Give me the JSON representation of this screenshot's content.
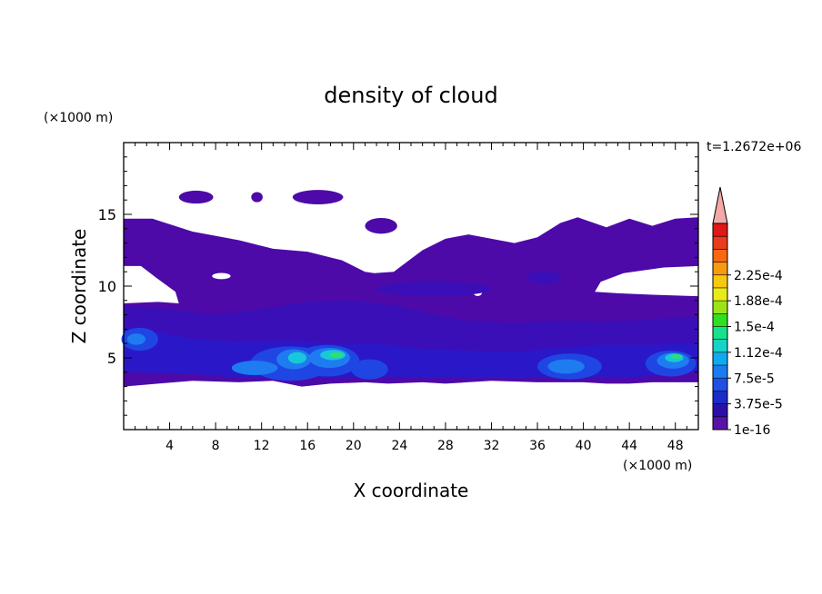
{
  "chart_data": {
    "type": "heatmap",
    "title": "density of cloud",
    "xlabel": "X coordinate",
    "ylabel": "Z coordinate",
    "x_unit": "(×1000 m)",
    "y_unit": "(×1000 m)",
    "time_label": "t=1.2672e+06",
    "xlim": [
      0,
      50
    ],
    "ylim": [
      0,
      20
    ],
    "x_ticks": [
      "4",
      "8",
      "12",
      "16",
      "20",
      "24",
      "28",
      "32",
      "36",
      "40",
      "44",
      "48"
    ],
    "y_ticks": [
      "5",
      "10",
      "15"
    ],
    "colorbar": {
      "labels": [
        "1e-16",
        "3.75e-5",
        "7.5e-5",
        "1.12e-4",
        "1.5e-4",
        "1.88e-4",
        "2.25e-4"
      ],
      "colors": [
        "#5a12a6",
        "#2a10a6",
        "#1b2cc8",
        "#1e50e6",
        "#1b7cf0",
        "#10aaf0",
        "#18d2c8",
        "#16e28c",
        "#30e020",
        "#9ce418",
        "#e8ec14",
        "#f8c810",
        "#f89a10",
        "#f86810",
        "#e83c1c",
        "#e01818"
      ],
      "overflow_color": "#f4a8a8"
    },
    "fill_colors": {
      "base": "#4d0aa8",
      "mid": "#3a0fb8",
      "deep": "#2a18c8",
      "blue": "#1f46e2",
      "light_blue": "#1e7cf0",
      "cyan": "#18c8d8",
      "green": "#2ee070"
    }
  }
}
